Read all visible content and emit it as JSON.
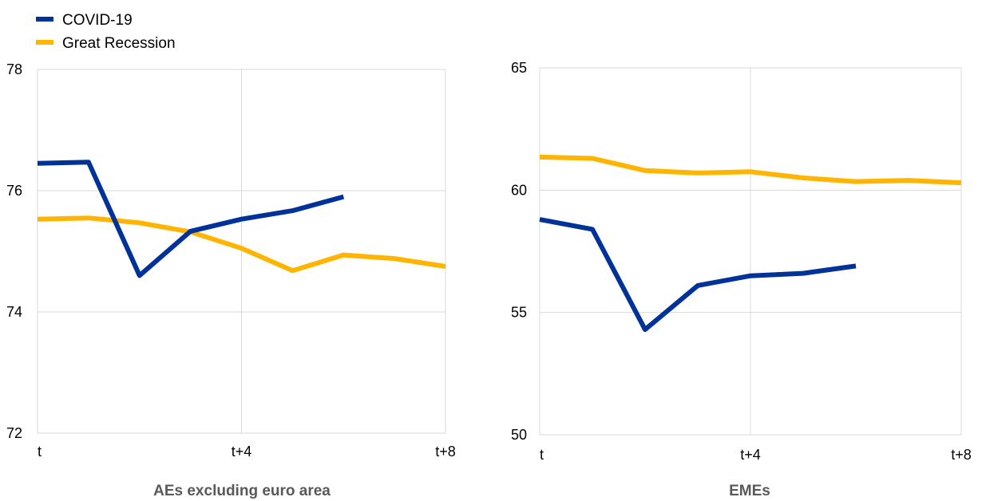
{
  "legend": [
    {
      "name": "COVID-19",
      "color": "#003299"
    },
    {
      "name": "Great Recession",
      "color": "#ffb400"
    }
  ],
  "chart_data": [
    {
      "type": "line",
      "title": "AEs excluding euro area",
      "x": [
        0,
        1,
        2,
        3,
        4,
        5,
        6,
        7,
        8
      ],
      "xticks": [
        {
          "at": 0,
          "label": "t"
        },
        {
          "at": 4,
          "label": "t+4"
        },
        {
          "at": 8,
          "label": "t+8"
        }
      ],
      "ylim": [
        72,
        78
      ],
      "yticks": [
        72,
        74,
        76,
        78
      ],
      "grid": true,
      "legend": "top-left",
      "series": [
        {
          "name": "COVID-19",
          "color": "#003299",
          "values": [
            76.45,
            76.47,
            74.6,
            75.33,
            75.53,
            75.67,
            75.9,
            null,
            null
          ]
        },
        {
          "name": "Great Recession",
          "color": "#ffb400",
          "values": [
            75.53,
            75.55,
            75.47,
            75.32,
            75.05,
            74.68,
            74.94,
            74.88,
            74.75
          ]
        }
      ]
    },
    {
      "type": "line",
      "title": "EMEs",
      "x": [
        0,
        1,
        2,
        3,
        4,
        5,
        6,
        7,
        8
      ],
      "xticks": [
        {
          "at": 0,
          "label": "t"
        },
        {
          "at": 4,
          "label": "t+4"
        },
        {
          "at": 8,
          "label": "t+8"
        }
      ],
      "ylim": [
        50,
        65
      ],
      "yticks": [
        50,
        55,
        60,
        65
      ],
      "grid": true,
      "series": [
        {
          "name": "COVID-19",
          "color": "#003299",
          "values": [
            58.8,
            58.4,
            54.3,
            56.1,
            56.5,
            56.6,
            56.9,
            null,
            null
          ]
        },
        {
          "name": "Great Recession",
          "color": "#ffb400",
          "values": [
            61.35,
            61.3,
            60.8,
            60.7,
            60.75,
            60.5,
            60.35,
            60.4,
            60.3
          ]
        }
      ]
    }
  ]
}
